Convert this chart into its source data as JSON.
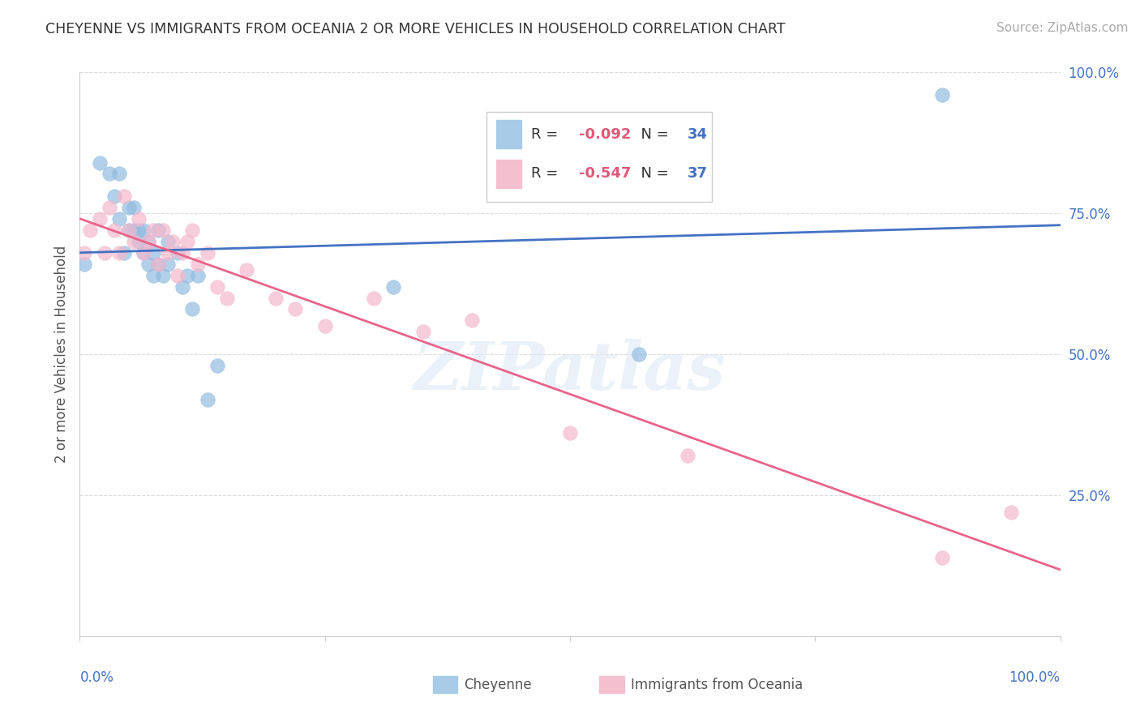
{
  "title": "CHEYENNE VS IMMIGRANTS FROM OCEANIA 2 OR MORE VEHICLES IN HOUSEHOLD CORRELATION CHART",
  "source": "Source: ZipAtlas.com",
  "ylabel": "2 or more Vehicles in Household",
  "xlim": [
    0,
    1
  ],
  "ylim": [
    0,
    1
  ],
  "yticks": [
    0.0,
    0.25,
    0.5,
    0.75,
    1.0
  ],
  "ytick_labels": [
    "",
    "25.0%",
    "50.0%",
    "75.0%",
    "100.0%"
  ],
  "xticks": [
    0.0,
    0.25,
    0.5,
    0.75,
    1.0
  ],
  "legend_entry1": {
    "label": "Cheyenne",
    "R": -0.092,
    "N": 34
  },
  "legend_entry2": {
    "label": "Immigrants from Oceania",
    "R": -0.547,
    "N": 37
  },
  "blue_scatter_color": "#92bce0",
  "pink_scatter_color": "#f4b8cc",
  "blue_line_color": "#4472c4",
  "pink_line_color": "#e8648a",
  "blue_legend_color": "#a8cce8",
  "pink_legend_color": "#f4c0d0",
  "R_color": "#e05878",
  "N_color": "#4472c4",
  "grid_color": "#cccccc",
  "background_color": "#ffffff",
  "watermark": "ZIPatlas",
  "cheyenne_x": [
    0.005,
    0.02,
    0.03,
    0.035,
    0.04,
    0.04,
    0.045,
    0.05,
    0.05,
    0.055,
    0.055,
    0.06,
    0.06,
    0.065,
    0.065,
    0.07,
    0.07,
    0.075,
    0.075,
    0.08,
    0.08,
    0.085,
    0.09,
    0.09,
    0.1,
    0.105,
    0.11,
    0.115,
    0.12,
    0.13,
    0.14,
    0.32,
    0.57,
    0.88
  ],
  "cheyenne_y": [
    0.66,
    0.84,
    0.82,
    0.78,
    0.74,
    0.82,
    0.68,
    0.72,
    0.76,
    0.72,
    0.76,
    0.7,
    0.72,
    0.68,
    0.72,
    0.66,
    0.7,
    0.64,
    0.68,
    0.66,
    0.72,
    0.64,
    0.66,
    0.7,
    0.68,
    0.62,
    0.64,
    0.58,
    0.64,
    0.42,
    0.48,
    0.62,
    0.5,
    0.96
  ],
  "oceania_x": [
    0.005,
    0.01,
    0.02,
    0.025,
    0.03,
    0.035,
    0.04,
    0.045,
    0.05,
    0.055,
    0.06,
    0.065,
    0.07,
    0.075,
    0.08,
    0.085,
    0.09,
    0.095,
    0.1,
    0.105,
    0.11,
    0.115,
    0.12,
    0.13,
    0.14,
    0.15,
    0.17,
    0.2,
    0.22,
    0.25,
    0.3,
    0.35,
    0.4,
    0.5,
    0.62,
    0.88,
    0.95
  ],
  "oceania_y": [
    0.68,
    0.72,
    0.74,
    0.68,
    0.76,
    0.72,
    0.68,
    0.78,
    0.72,
    0.7,
    0.74,
    0.68,
    0.7,
    0.72,
    0.66,
    0.72,
    0.68,
    0.7,
    0.64,
    0.68,
    0.7,
    0.72,
    0.66,
    0.68,
    0.62,
    0.6,
    0.65,
    0.6,
    0.58,
    0.55,
    0.6,
    0.54,
    0.56,
    0.36,
    0.32,
    0.14,
    0.22
  ]
}
